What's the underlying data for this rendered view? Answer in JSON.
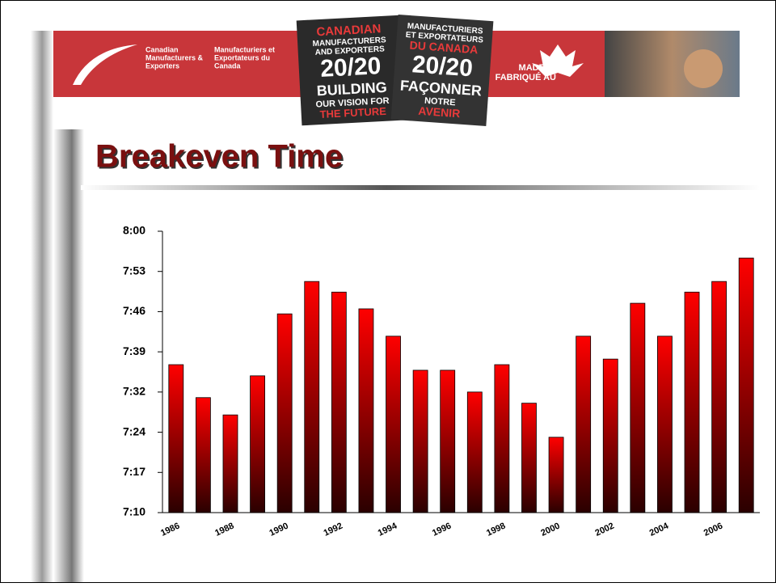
{
  "header": {
    "logo_en": [
      "Canadian",
      "Manufacturers &",
      "Exporters"
    ],
    "logo_fr": [
      "Manufacturiers et",
      "Exportateurs du",
      "Canada"
    ],
    "badge_en": [
      "CANADIAN",
      "MANUFACTURERS",
      "AND EXPORTERS",
      "20/20",
      "BUILDING",
      "OUR VISION FOR",
      "THE FUTURE"
    ],
    "badge_fr": [
      "MANUFACTURIERS",
      "ET EXPORTATEURS",
      "DU CANADA",
      "20/20",
      "FAÇONNER",
      "NOTRE",
      "AVENIR"
    ],
    "made_in": [
      "MADE IN",
      "FABRIQUÉ AU"
    ]
  },
  "chart_data": {
    "type": "bar",
    "title": "Breakeven Time",
    "categories": [
      "1986",
      null,
      "1988",
      null,
      "1990",
      null,
      "1992",
      null,
      "1994",
      null,
      "1996",
      null,
      "1998",
      null,
      "2000",
      null,
      "2002",
      null,
      "2004",
      null,
      "2006",
      null
    ],
    "values": [
      456.5,
      450.6,
      447.5,
      454.5,
      465.6,
      471.4,
      469.5,
      466.5,
      461.6,
      455.5,
      455.5,
      451.6,
      456.5,
      449.6,
      443.5,
      461.6,
      457.5,
      467.5,
      461.6,
      469.5,
      471.4,
      475.6
    ],
    "color": "#ff0000",
    "ylim": [
      430,
      480.4
    ],
    "yticks": [
      {
        "value": 430,
        "label": "7:10"
      },
      {
        "value": 437.2,
        "label": "7:17"
      },
      {
        "value": 444.4,
        "label": "7:24"
      },
      {
        "value": 451.6,
        "label": "7:32"
      },
      {
        "value": 458.8,
        "label": "7:39"
      },
      {
        "value": 466,
        "label": "7:46"
      },
      {
        "value": 473.2,
        "label": "7:53"
      },
      {
        "value": 480.4,
        "label": "8:00"
      }
    ],
    "grid": false
  }
}
